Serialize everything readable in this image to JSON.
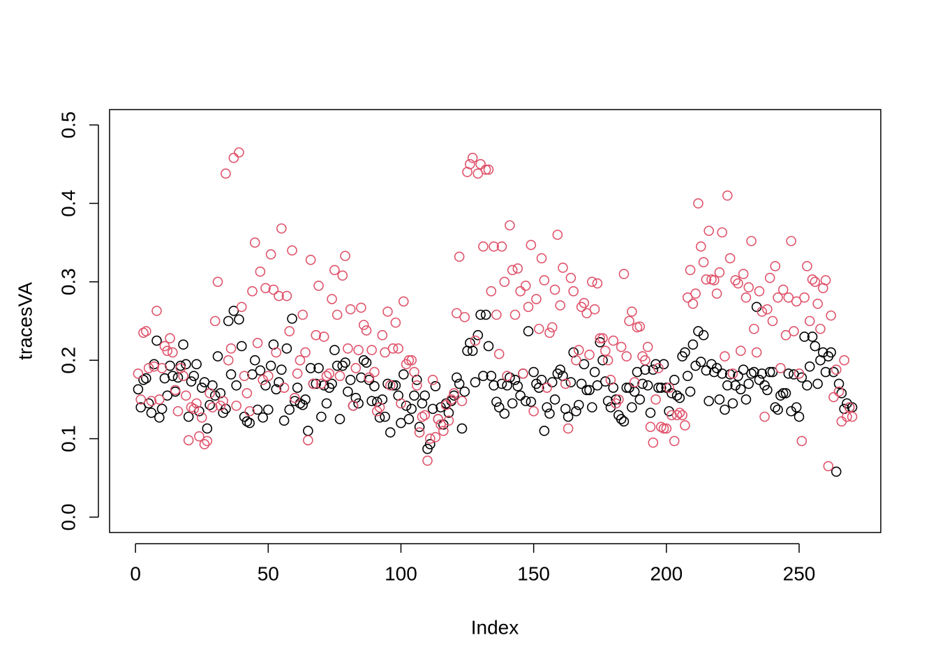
{
  "chart_data": {
    "type": "scatter",
    "x_label": "Index",
    "y_label": "tracesVA",
    "xlim": [
      -9.76,
      280.76
    ],
    "ylim": [
      -0.0196,
      0.5196
    ],
    "xticks": [
      0,
      50,
      100,
      150,
      200,
      250
    ],
    "yticks": [
      {
        "value": 0,
        "label": "0.0"
      },
      0.1,
      0.2,
      0.3,
      0.4,
      0.5
    ],
    "x": [
      1,
      2,
      3,
      4,
      5,
      6,
      7,
      8,
      9,
      10,
      11,
      12,
      13,
      14,
      15,
      16,
      17,
      18,
      19,
      20,
      21,
      22,
      23,
      24,
      25,
      26,
      27,
      28,
      29,
      30,
      31,
      32,
      33,
      34,
      35,
      36,
      37,
      38,
      39,
      40,
      41,
      42,
      43,
      44,
      45,
      46,
      47,
      48,
      49,
      50,
      51,
      52,
      53,
      54,
      55,
      56,
      57,
      58,
      59,
      60,
      61,
      62,
      63,
      64,
      65,
      66,
      67,
      68,
      69,
      70,
      71,
      72,
      73,
      74,
      75,
      76,
      77,
      78,
      79,
      80,
      81,
      82,
      83,
      84,
      85,
      86,
      87,
      88,
      89,
      90,
      91,
      92,
      93,
      94,
      95,
      96,
      97,
      98,
      99,
      100,
      101,
      102,
      103,
      104,
      105,
      106,
      107,
      108,
      109,
      110,
      111,
      112,
      113,
      114,
      115,
      116,
      117,
      118,
      119,
      120,
      121,
      122,
      123,
      124,
      125,
      126,
      127,
      128,
      129,
      130,
      131,
      132,
      133,
      134,
      135,
      136,
      137,
      138,
      139,
      140,
      141,
      142,
      143,
      144,
      145,
      146,
      147,
      148,
      149,
      150,
      151,
      152,
      153,
      154,
      155,
      156,
      157,
      158,
      159,
      160,
      161,
      162,
      163,
      164,
      165,
      166,
      167,
      168,
      169,
      170,
      171,
      172,
      173,
      174,
      175,
      176,
      177,
      178,
      179,
      180,
      181,
      182,
      183,
      184,
      185,
      186,
      187,
      188,
      189,
      190,
      191,
      192,
      193,
      194,
      195,
      196,
      197,
      198,
      199,
      200,
      201,
      202,
      203,
      204,
      205,
      206,
      207,
      208,
      209,
      210,
      211,
      212,
      213,
      214,
      215,
      216,
      217,
      218,
      219,
      220,
      221,
      222,
      223,
      224,
      225,
      226,
      227,
      228,
      229,
      230,
      231,
      232,
      233,
      234,
      235,
      236,
      237,
      238,
      239,
      240,
      241,
      242,
      243,
      244,
      245,
      246,
      247,
      248,
      249,
      250,
      251,
      252,
      253,
      254,
      255,
      256,
      257,
      258,
      259,
      260,
      261,
      262,
      263,
      264,
      265,
      266,
      267,
      268,
      269,
      270
    ],
    "series": [
      {
        "color": "#000000",
        "values": [
          0.163,
          0.14,
          0.175,
          0.177,
          0.145,
          0.133,
          0.195,
          0.225,
          0.127,
          0.138,
          0.177,
          0.155,
          0.193,
          0.18,
          0.16,
          0.178,
          0.193,
          0.22,
          0.195,
          0.128,
          0.173,
          0.18,
          0.195,
          0.135,
          0.165,
          0.172,
          0.113,
          0.143,
          0.168,
          0.155,
          0.205,
          0.158,
          0.133,
          0.138,
          0.25,
          0.182,
          0.263,
          0.168,
          0.252,
          0.218,
          0.128,
          0.122,
          0.12,
          0.182,
          0.2,
          0.137,
          0.187,
          0.127,
          0.168,
          0.137,
          0.193,
          0.22,
          0.163,
          0.172,
          0.188,
          0.123,
          0.215,
          0.137,
          0.253,
          0.148,
          0.165,
          0.145,
          0.143,
          0.15,
          0.11,
          0.19,
          0.17,
          0.17,
          0.19,
          0.128,
          0.168,
          0.145,
          0.165,
          0.17,
          0.213,
          0.193,
          0.125,
          0.193,
          0.197,
          0.16,
          0.175,
          0.142,
          0.152,
          0.145,
          0.178,
          0.2,
          0.197,
          0.175,
          0.148,
          0.167,
          0.147,
          0.127,
          0.15,
          0.128,
          0.17,
          0.108,
          0.168,
          0.168,
          0.155,
          0.12,
          0.182,
          0.142,
          0.125,
          0.138,
          0.155,
          0.175,
          0.115,
          0.145,
          0.155,
          0.087,
          0.093,
          0.138,
          0.167,
          0.125,
          0.14,
          0.118,
          0.145,
          0.133,
          0.148,
          0.155,
          0.178,
          0.17,
          0.113,
          0.16,
          0.212,
          0.222,
          0.212,
          0.172,
          0.232,
          0.258,
          0.18,
          0.258,
          0.218,
          0.18,
          0.168,
          0.147,
          0.14,
          0.17,
          0.132,
          0.168,
          0.178,
          0.145,
          0.175,
          0.167,
          0.155,
          0.183,
          0.148,
          0.237,
          0.147,
          0.185,
          0.17,
          0.165,
          0.175,
          0.11,
          0.14,
          0.132,
          0.172,
          0.15,
          0.183,
          0.188,
          0.18,
          0.138,
          0.128,
          0.172,
          0.21,
          0.135,
          0.143,
          0.17,
          0.195,
          0.162,
          0.162,
          0.14,
          0.185,
          0.168,
          0.223,
          0.2,
          0.173,
          0.148,
          0.14,
          0.165,
          0.15,
          0.13,
          0.125,
          0.122,
          0.165,
          0.165,
          0.14,
          0.16,
          0.185,
          0.15,
          0.17,
          0.188,
          0.168,
          0.133,
          0.188,
          0.195,
          0.165,
          0.165,
          0.195,
          0.165,
          0.135,
          0.158,
          0.175,
          0.155,
          0.152,
          0.205,
          0.21,
          0.18,
          0.16,
          0.22,
          0.193,
          0.237,
          0.198,
          0.232,
          0.187,
          0.148,
          0.195,
          0.185,
          0.19,
          0.15,
          0.183,
          0.137,
          0.168,
          0.182,
          0.145,
          0.168,
          0.18,
          0.163,
          0.188,
          0.15,
          0.17,
          0.183,
          0.185,
          0.268,
          0.175,
          0.183,
          0.168,
          0.162,
          0.185,
          0.185,
          0.14,
          0.137,
          0.155,
          0.158,
          0.158,
          0.183,
          0.135,
          0.182,
          0.14,
          0.128,
          0.178,
          0.23,
          0.168,
          0.192,
          0.23,
          0.218,
          0.17,
          0.2,
          0.21,
          0.185,
          0.205,
          0.21,
          0.185,
          0.058,
          0.17,
          0.158,
          0.138,
          0.145,
          0.14,
          0.14
        ]
      },
      {
        "color": "#DF536B",
        "values": [
          0.183,
          0.15,
          0.235,
          0.237,
          0.19,
          0.148,
          0.192,
          0.263,
          0.15,
          0.19,
          0.218,
          0.212,
          0.228,
          0.21,
          0.162,
          0.135,
          0.19,
          0.18,
          0.155,
          0.098,
          0.14,
          0.138,
          0.145,
          0.103,
          0.127,
          0.093,
          0.097,
          0.158,
          0.14,
          0.25,
          0.3,
          0.142,
          0.148,
          0.438,
          0.2,
          0.215,
          0.458,
          0.142,
          0.465,
          0.268,
          0.18,
          0.158,
          0.135,
          0.288,
          0.35,
          0.222,
          0.313,
          0.175,
          0.292,
          0.18,
          0.335,
          0.29,
          0.21,
          0.282,
          0.368,
          0.165,
          0.282,
          0.237,
          0.34,
          0.152,
          0.183,
          0.2,
          0.258,
          0.21,
          0.098,
          0.328,
          0.17,
          0.232,
          0.295,
          0.17,
          0.23,
          0.18,
          0.183,
          0.278,
          0.315,
          0.258,
          0.18,
          0.308,
          0.333,
          0.215,
          0.265,
          0.142,
          0.19,
          0.213,
          0.267,
          0.245,
          0.238,
          0.178,
          0.213,
          0.185,
          0.135,
          0.14,
          0.232,
          0.21,
          0.262,
          0.168,
          0.215,
          0.248,
          0.215,
          0.145,
          0.275,
          0.195,
          0.2,
          0.2,
          0.185,
          0.168,
          0.108,
          0.128,
          0.13,
          0.072,
          0.1,
          0.175,
          0.102,
          0.125,
          0.118,
          0.11,
          0.143,
          0.123,
          0.15,
          0.158,
          0.26,
          0.332,
          0.148,
          0.255,
          0.44,
          0.45,
          0.458,
          0.225,
          0.438,
          0.45,
          0.345,
          0.443,
          0.443,
          0.288,
          0.345,
          0.258,
          0.208,
          0.345,
          0.3,
          0.18,
          0.372,
          0.315,
          0.258,
          0.317,
          0.288,
          0.183,
          0.295,
          0.268,
          0.347,
          0.135,
          0.278,
          0.24,
          0.33,
          0.302,
          0.165,
          0.235,
          0.242,
          0.29,
          0.36,
          0.27,
          0.318,
          0.17,
          0.113,
          0.305,
          0.288,
          0.2,
          0.213,
          0.268,
          0.273,
          0.26,
          0.207,
          0.3,
          0.265,
          0.298,
          0.228,
          0.228,
          0.212,
          0.2,
          0.175,
          0.225,
          0.145,
          0.15,
          0.217,
          0.31,
          0.205,
          0.25,
          0.262,
          0.172,
          0.242,
          0.243,
          0.205,
          0.2,
          0.217,
          0.115,
          0.095,
          0.15,
          0.19,
          0.115,
          0.113,
          0.113,
          0.165,
          0.13,
          0.097,
          0.13,
          0.133,
          0.13,
          0.117,
          0.28,
          0.315,
          0.272,
          0.285,
          0.4,
          0.345,
          0.325,
          0.303,
          0.365,
          0.303,
          0.302,
          0.285,
          0.312,
          0.363,
          0.205,
          0.41,
          0.33,
          0.183,
          0.302,
          0.298,
          0.212,
          0.31,
          0.28,
          0.293,
          0.352,
          0.24,
          0.21,
          0.288,
          0.262,
          0.128,
          0.265,
          0.305,
          0.25,
          0.32,
          0.28,
          0.19,
          0.29,
          0.232,
          0.28,
          0.352,
          0.237,
          0.275,
          0.183,
          0.097,
          0.28,
          0.32,
          0.25,
          0.303,
          0.3,
          0.272,
          0.24,
          0.292,
          0.302,
          0.065,
          0.257,
          0.153,
          0.188,
          0.16,
          0.122,
          0.2,
          0.128,
          0.14,
          0.128
        ]
      }
    ]
  }
}
